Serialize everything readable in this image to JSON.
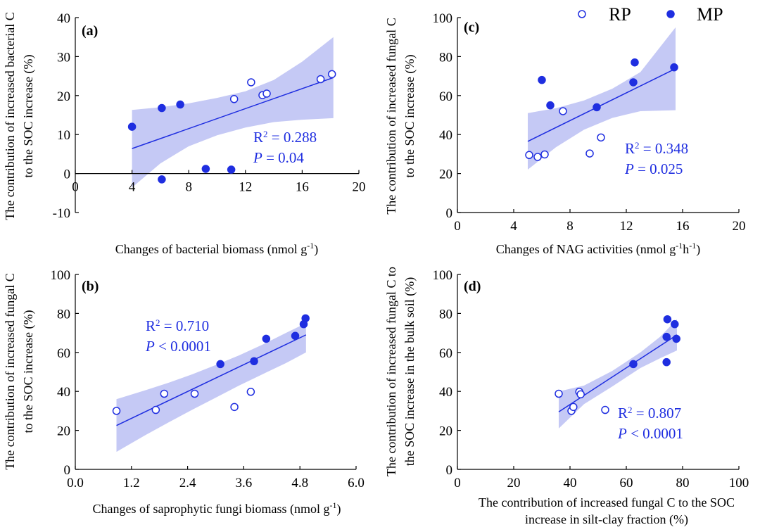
{
  "legend": {
    "open_label": "RP",
    "filled_label": "MP"
  },
  "colors": {
    "series": "#1f2ee0",
    "band": "#c5c9f5"
  },
  "chart_data": [
    {
      "id": "a",
      "type": "scatter",
      "panel_label": "(a)",
      "xlabel": "Changes of bacterial biomass (nmol g",
      "xlabel_sup": "-1",
      "xlabel_end": ")",
      "ylabel_lines": [
        "The contribution of  increased bacterial C",
        "to the SOC increase (%)"
      ],
      "xlim": [
        0,
        20
      ],
      "ylim": [
        -10,
        40
      ],
      "xticks": [
        "0",
        "4",
        "8",
        "12",
        "16",
        "20"
      ],
      "xtick_values": [
        0,
        4,
        8,
        12,
        16,
        20
      ],
      "yticks": [
        "-10",
        "0",
        "10",
        "20",
        "30",
        "40"
      ],
      "ytick_values": [
        -10,
        0,
        10,
        20,
        30,
        40
      ],
      "rp": [
        [
          11.2,
          19.1
        ],
        [
          12.4,
          23.4
        ],
        [
          13.2,
          20.1
        ],
        [
          13.5,
          20.5
        ],
        [
          17.3,
          24.2
        ],
        [
          18.1,
          25.5
        ]
      ],
      "mp": [
        [
          4.0,
          12.0
        ],
        [
          6.1,
          16.8
        ],
        [
          7.4,
          17.7
        ],
        [
          9.2,
          1.2
        ],
        [
          11.0,
          1.0
        ],
        [
          6.1,
          -1.5
        ]
      ],
      "fit": [
        [
          4.0,
          6.4
        ],
        [
          18.2,
          24.6
        ]
      ],
      "ci_upper": [
        [
          4.0,
          16.3
        ],
        [
          6.0,
          17.0
        ],
        [
          8.0,
          18.0
        ],
        [
          10.0,
          19.4
        ],
        [
          12.0,
          21.1
        ],
        [
          14.0,
          24.0
        ],
        [
          16.0,
          28.7
        ],
        [
          18.2,
          35.0
        ]
      ],
      "ci_lower": [
        [
          4.0,
          -3.6
        ],
        [
          6.0,
          2.6
        ],
        [
          8.0,
          7.0
        ],
        [
          10.0,
          9.8
        ],
        [
          12.0,
          11.8
        ],
        [
          14.0,
          13.2
        ],
        [
          16.0,
          13.8
        ],
        [
          18.2,
          14.2
        ]
      ],
      "stat_r2_prefix": "R",
      "stat_r2_sup": "2",
      "stat_r2_value": " = 0.288",
      "stat_p_symbol": "P",
      "stat_p_value": " = 0.04"
    },
    {
      "id": "b",
      "type": "scatter",
      "panel_label": "(b)",
      "xlabel": "Changes of saprophytic fungi biomass (nmol g",
      "xlabel_sup": "-1",
      "xlabel_end": ")",
      "ylabel_lines": [
        "The contribution of increased fungal C",
        "to the SOC increase (%)"
      ],
      "xlim": [
        0,
        6
      ],
      "ylim": [
        0,
        100
      ],
      "xticks": [
        "0.0",
        "1.2",
        "2.4",
        "3.6",
        "4.8",
        "6.0"
      ],
      "xtick_values": [
        0,
        1.2,
        2.4,
        3.6,
        4.8,
        6.0
      ],
      "yticks": [
        "0",
        "20",
        "40",
        "60",
        "80",
        "100"
      ],
      "ytick_values": [
        0,
        20,
        40,
        60,
        80,
        100
      ],
      "rp": [
        [
          0.88,
          30.0
        ],
        [
          1.72,
          30.5
        ],
        [
          1.9,
          38.8
        ],
        [
          2.55,
          38.8
        ],
        [
          3.4,
          32.0
        ],
        [
          3.75,
          39.8
        ]
      ],
      "mp": [
        [
          3.1,
          54.0
        ],
        [
          3.82,
          55.5
        ],
        [
          4.08,
          67.0
        ],
        [
          4.7,
          68.5
        ],
        [
          4.88,
          74.5
        ],
        [
          4.92,
          77.5
        ]
      ],
      "fit": [
        [
          0.88,
          22.5
        ],
        [
          4.93,
          69.0
        ]
      ],
      "ci_upper": [
        [
          0.88,
          36.0
        ],
        [
          1.5,
          40.6
        ],
        [
          2.0,
          44.5
        ],
        [
          2.5,
          48.8
        ],
        [
          3.0,
          53.5
        ],
        [
          3.5,
          58.5
        ],
        [
          4.0,
          64.0
        ],
        [
          4.5,
          70.0
        ],
        [
          4.93,
          75.0
        ]
      ],
      "ci_lower": [
        [
          0.88,
          9.0
        ],
        [
          1.5,
          17.6
        ],
        [
          2.0,
          24.2
        ],
        [
          2.5,
          30.6
        ],
        [
          3.0,
          36.8
        ],
        [
          3.5,
          43.0
        ],
        [
          4.0,
          48.8
        ],
        [
          4.5,
          54.5
        ],
        [
          4.93,
          60.0
        ]
      ],
      "stat_r2_prefix": "R",
      "stat_r2_sup": "2",
      "stat_r2_value": " = 0.710",
      "stat_p_symbol": "P",
      "stat_p_value": " < 0.0001"
    },
    {
      "id": "c",
      "type": "scatter",
      "panel_label": "(c)",
      "xlabel": "Changes of NAG activities (nmol g",
      "xlabel_sup": "-1",
      "xlabel_mid": "h",
      "xlabel_sup2": "-1",
      "xlabel_end": ")",
      "ylabel_lines": [
        "The contribution of increased fungal C",
        "to the SOC increase (%)"
      ],
      "xlim": [
        0,
        20
      ],
      "ylim": [
        0,
        100
      ],
      "xticks": [
        "0",
        "4",
        "8",
        "12",
        "16",
        "20"
      ],
      "xtick_values": [
        0,
        4,
        8,
        12,
        16,
        20
      ],
      "yticks": [
        "0",
        "20",
        "40",
        "60",
        "80",
        "100"
      ],
      "ytick_values": [
        0,
        20,
        40,
        60,
        80,
        100
      ],
      "rp": [
        [
          5.1,
          29.5
        ],
        [
          5.7,
          28.5
        ],
        [
          6.2,
          29.8
        ],
        [
          7.5,
          52.0
        ],
        [
          9.4,
          30.3
        ],
        [
          10.2,
          38.5
        ]
      ],
      "mp": [
        [
          6.0,
          68.0
        ],
        [
          6.6,
          55.0
        ],
        [
          9.9,
          54.0
        ],
        [
          12.5,
          66.8
        ],
        [
          12.6,
          77.0
        ],
        [
          15.4,
          74.5
        ]
      ],
      "fit": [
        [
          5.0,
          36.5
        ],
        [
          15.5,
          73.8
        ]
      ],
      "ci_upper": [
        [
          5.0,
          51.0
        ],
        [
          7.0,
          53.5
        ],
        [
          9.0,
          57.5
        ],
        [
          11.0,
          63.5
        ],
        [
          13.0,
          72.0
        ],
        [
          15.5,
          95.0
        ]
      ],
      "ci_lower": [
        [
          5.0,
          22.0
        ],
        [
          7.0,
          33.5
        ],
        [
          9.0,
          42.5
        ],
        [
          11.0,
          48.5
        ],
        [
          13.0,
          52.0
        ],
        [
          15.5,
          52.5
        ]
      ],
      "stat_r2_prefix": "R",
      "stat_r2_sup": "2",
      "stat_r2_value": " = 0.348",
      "stat_p_symbol": "P",
      "stat_p_value": " = 0.025"
    },
    {
      "id": "d",
      "type": "scatter",
      "panel_label": "(d)",
      "xlabel_lines": [
        "The contribution of increased fungal C to the SOC",
        "increase in silt-clay fraction (%)"
      ],
      "ylabel_lines": [
        "The contribution of increased fungal C to",
        "the SOC increase in the bulk soil (%)"
      ],
      "xlim": [
        0,
        100
      ],
      "ylim": [
        0,
        100
      ],
      "xticks": [
        "0",
        "20",
        "40",
        "60",
        "80",
        "100"
      ],
      "xtick_values": [
        0,
        20,
        40,
        60,
        80,
        100
      ],
      "yticks": [
        "0",
        "20",
        "40",
        "60",
        "80",
        "100"
      ],
      "ytick_values": [
        0,
        20,
        40,
        60,
        80,
        100
      ],
      "rp": [
        [
          36.0,
          38.8
        ],
        [
          40.5,
          30.0
        ],
        [
          41.2,
          32.0
        ],
        [
          43.3,
          39.8
        ],
        [
          43.8,
          38.5
        ],
        [
          52.5,
          30.5
        ]
      ],
      "mp": [
        [
          62.5,
          54.0
        ],
        [
          74.3,
          55.0
        ],
        [
          74.3,
          68.0
        ],
        [
          74.6,
          77.0
        ],
        [
          77.2,
          74.5
        ],
        [
          77.8,
          67.0
        ]
      ],
      "fit": [
        [
          36.0,
          29.5
        ],
        [
          78.0,
          69.0
        ]
      ],
      "ci_upper": [
        [
          36.0,
          40.0
        ],
        [
          45.0,
          43.0
        ],
        [
          55.0,
          50.5
        ],
        [
          65.0,
          60.0
        ],
        [
          72.0,
          68.0
        ],
        [
          78.0,
          77.0
        ]
      ],
      "ci_lower": [
        [
          36.0,
          21.0
        ],
        [
          45.0,
          33.5
        ],
        [
          55.0,
          42.5
        ],
        [
          65.0,
          52.0
        ],
        [
          72.0,
          57.0
        ],
        [
          78.0,
          61.0
        ]
      ],
      "stat_r2_prefix": "R",
      "stat_r2_sup": "2",
      "stat_r2_value": " = 0.807",
      "stat_p_symbol": "P",
      "stat_p_value": " < 0.0001"
    }
  ]
}
